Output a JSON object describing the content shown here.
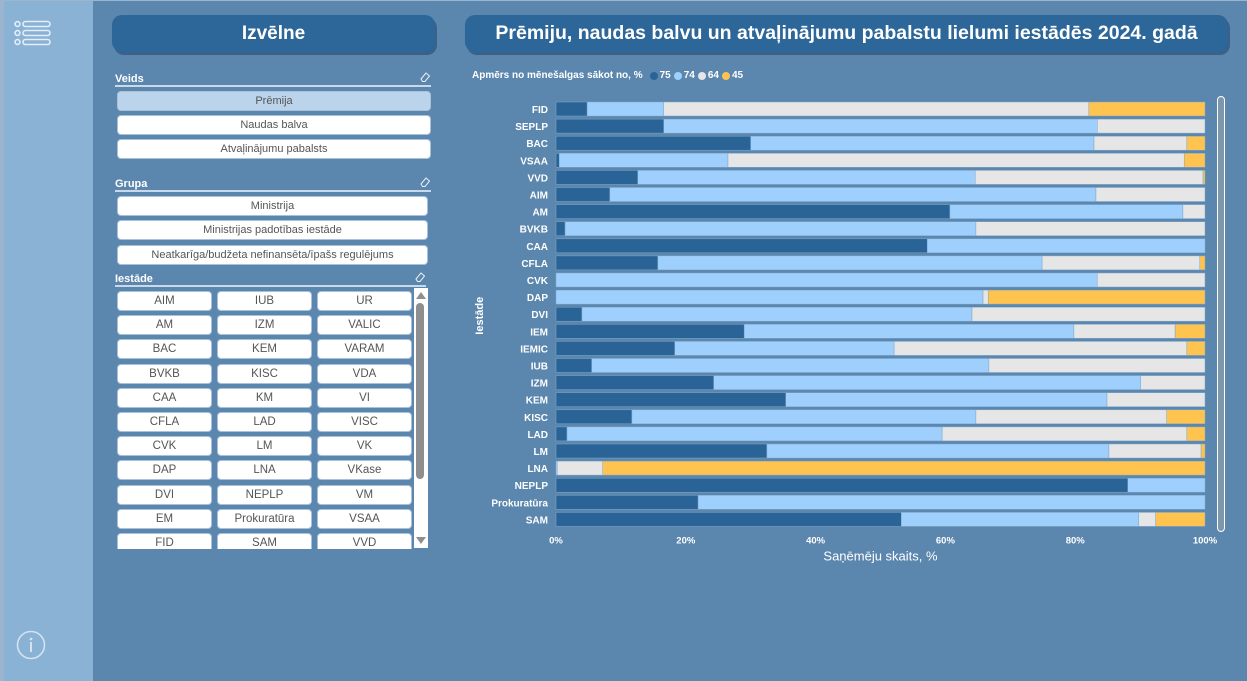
{
  "sidebar": {
    "menu_icon": "menu-list-icon",
    "info_icon": "info-icon"
  },
  "left_panel": {
    "title": "Izvēlne",
    "veids": {
      "label": "Veids",
      "clear_icon": "eraser-icon",
      "options": [
        {
          "label": "Prēmija",
          "selected": true
        },
        {
          "label": "Naudas balva",
          "selected": false
        },
        {
          "label": "Atvaļinājumu pabalsts",
          "selected": false
        }
      ]
    },
    "grupa": {
      "label": "Grupa",
      "clear_icon": "eraser-icon",
      "options": [
        {
          "label": "Ministrija",
          "selected": false
        },
        {
          "label": "Ministrijas padotības iestāde",
          "selected": false
        },
        {
          "label": "Neatkarīga/budžeta nefinansēta/īpašs regulējums",
          "selected": false
        }
      ]
    },
    "iestade": {
      "label": "Iestāde",
      "clear_icon": "eraser-icon",
      "options": [
        "AIM",
        "IUB",
        "UR",
        "AM",
        "IZM",
        "VALIC",
        "BAC",
        "KEM",
        "VARAM",
        "BVKB",
        "KISC",
        "VDA",
        "CAA",
        "KM",
        "VI",
        "CFLA",
        "LAD",
        "VISC",
        "CVK",
        "LM",
        "VK",
        "DAP",
        "LNA",
        "VKase",
        "DVI",
        "NEPLP",
        "VM",
        "EM",
        "Prokuratūra",
        "VSAA",
        "FID",
        "SAM",
        "VVD"
      ]
    }
  },
  "chart_panel": {
    "title": "Prēmiju, naudas balvu un atvaļinājumu pabalstu lielumi iestādēs 2024. gadā"
  },
  "chart_data": {
    "type": "bar",
    "orientation": "horizontal",
    "stacked": "100%",
    "title": "Prēmiju, naudas balvu un atvaļinājumu pabalstu lielumi iestādēs 2024. gadā",
    "legend_title": "Apmērs no mēnešalgas sākot no, %",
    "legend_position": "top-left",
    "xlabel": "Saņēmēju skaits, %",
    "ylabel": "Iestāde",
    "xlim": [
      0,
      100
    ],
    "xticks": [
      "0%",
      "20%",
      "40%",
      "60%",
      "80%",
      "100%"
    ],
    "grid": false,
    "categories": [
      "FID",
      "SEPLP",
      "BAC",
      "VSAA",
      "VVD",
      "AIM",
      "AM",
      "BVKB",
      "CAA",
      "CFLA",
      "CVK",
      "DAP",
      "DVI",
      "IEM",
      "IEMIC",
      "IUB",
      "IZM",
      "KEM",
      "KISC",
      "LAD",
      "LM",
      "LNA",
      "NEPLP",
      "Prokuratūra",
      "SAM"
    ],
    "series": [
      {
        "name": "75",
        "color": "#2a6496",
        "values": [
          4.8,
          16.6,
          30.0,
          0.5,
          12.6,
          8.3,
          60.7,
          1.4,
          57.2,
          15.7,
          0,
          0,
          4.0,
          29.0,
          18.3,
          5.5,
          24.3,
          35.4,
          11.7,
          1.7,
          32.5,
          0,
          88.1,
          21.9,
          53.2
        ]
      },
      {
        "name": "74",
        "color": "#9fd0fd",
        "values": [
          11.8,
          66.8,
          52.9,
          26.0,
          52.0,
          74.9,
          35.9,
          63.3,
          42.8,
          59.2,
          83.4,
          65.8,
          60.1,
          50.8,
          33.8,
          61.2,
          65.8,
          49.5,
          53.0,
          57.8,
          52.7,
          0.2,
          11.9,
          78.1,
          36.6
        ]
      },
      {
        "name": "64",
        "color": "#e6e6e6",
        "values": [
          65.5,
          16.6,
          14.3,
          70.3,
          35.1,
          16.8,
          3.4,
          35.3,
          0,
          24.3,
          16.6,
          0.8,
          35.9,
          15.6,
          45.1,
          33.3,
          9.9,
          15.1,
          29.4,
          37.7,
          14.2,
          7.0,
          0,
          0,
          2.6
        ]
      },
      {
        "name": "45",
        "color": "#fec44f",
        "values": [
          17.9,
          0,
          2.8,
          3.2,
          0.3,
          0,
          0,
          0,
          0,
          0.8,
          0,
          33.4,
          0,
          4.6,
          2.8,
          0,
          0,
          0,
          5.9,
          2.8,
          0.6,
          92.8,
          0,
          0,
          7.6
        ]
      }
    ]
  }
}
